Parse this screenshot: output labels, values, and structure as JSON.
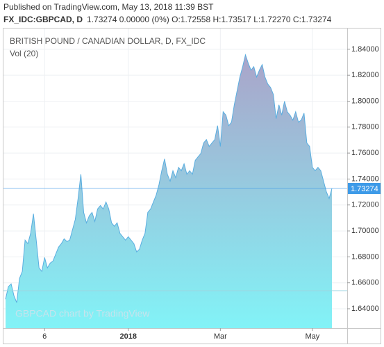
{
  "header": {
    "published": "Published on TradingView.com, May 13, 2018 11:39 BST",
    "symbol": "FX_IDC:GBPCAD, D",
    "quote": "1.73274 0.00000 (0%) O:1.72558 H:1.73517 L:1.72270 C:1.73274"
  },
  "chart_data": {
    "type": "area",
    "title": "BRITISH POUND / CANADIAN DOLLAR, D, FX_IDC",
    "subtitle": "Vol (20)",
    "watermark": "GBPCAD chart by TradingView",
    "categories": [
      null,
      null,
      null,
      null,
      null,
      null,
      null,
      null,
      null,
      null,
      null,
      null,
      null,
      null,
      "6",
      null,
      null,
      null,
      null,
      null,
      null,
      null,
      null,
      null,
      null,
      null,
      null,
      null,
      null,
      null,
      null,
      null,
      null,
      null,
      null,
      null,
      null,
      null,
      null,
      null,
      null,
      null,
      null,
      null,
      "2018",
      null,
      null,
      null,
      null,
      null,
      null,
      null,
      null,
      null,
      null,
      null,
      null,
      null,
      null,
      null,
      null,
      null,
      null,
      null,
      null,
      null,
      null,
      null,
      null,
      null,
      null,
      null,
      null,
      null,
      null,
      null,
      null,
      "Mar",
      null,
      null,
      null,
      null,
      null,
      null,
      null,
      null,
      null,
      null,
      null,
      null,
      null,
      null,
      null,
      null,
      null,
      null,
      null,
      null,
      null,
      null,
      null,
      null,
      null,
      null,
      null,
      null,
      null,
      null,
      null,
      null,
      "May",
      null,
      null,
      null,
      null,
      null,
      null,
      null
    ],
    "values": [
      1.6474,
      1.657,
      1.6592,
      1.6501,
      1.6447,
      1.6634,
      1.6688,
      1.6929,
      1.6902,
      1.6982,
      1.7132,
      1.6929,
      1.6715,
      1.6688,
      1.6795,
      1.6715,
      1.6752,
      1.6768,
      1.6822,
      1.6875,
      1.6902,
      1.6939,
      1.6918,
      1.6929,
      1.7009,
      1.7089,
      1.725,
      1.7437,
      1.7143,
      1.7062,
      1.7116,
      1.7143,
      1.7073,
      1.7169,
      1.7196,
      1.7169,
      1.7223,
      1.7169,
      1.7062,
      1.7036,
      1.7062,
      1.6982,
      1.6955,
      1.6929,
      1.6955,
      1.6929,
      1.6902,
      1.6838,
      1.6859,
      1.6929,
      1.6982,
      1.7143,
      1.7169,
      1.7223,
      1.7276,
      1.7357,
      1.7464,
      1.7555,
      1.7437,
      1.7383,
      1.7464,
      1.741,
      1.749,
      1.7464,
      1.7517,
      1.7437,
      1.7464,
      1.7437,
      1.7544,
      1.7571,
      1.7597,
      1.7678,
      1.7704,
      1.7651,
      1.7678,
      1.7704,
      1.7811,
      1.7651,
      1.7918,
      1.7892,
      1.7811,
      1.7838,
      1.7972,
      1.8079,
      1.8186,
      1.8266,
      1.8357,
      1.8293,
      1.8239,
      1.8266,
      1.8186,
      1.8239,
      1.8282,
      1.8186,
      1.8132,
      1.8106,
      1.8052,
      1.7865,
      1.7972,
      1.7892,
      1.7999,
      1.7918,
      1.7892,
      1.7854,
      1.7918,
      1.7838,
      1.7854,
      1.7908,
      1.7678,
      1.7651,
      1.749,
      1.7464,
      1.749,
      1.7464,
      1.7383,
      1.7303,
      1.725,
      1.73274
    ],
    "price_line": 1.73274,
    "color": "#5aaee0",
    "area_gradient": [
      "#aaa4c9",
      "#82f3f7"
    ],
    "price_line_color": "#3d9ae8",
    "ylim": [
      1.625,
      1.856
    ],
    "yticks": [
      {
        "value": 1.64,
        "label": "1.64000"
      },
      {
        "value": 1.66,
        "label": "1.66000"
      },
      {
        "value": 1.68,
        "label": "1.68000"
      },
      {
        "value": 1.7,
        "label": "1.70000"
      },
      {
        "value": 1.72,
        "label": "1.72000"
      },
      {
        "value": 1.74,
        "label": "1.74000"
      },
      {
        "value": 1.76,
        "label": "1.76000"
      },
      {
        "value": 1.78,
        "label": "1.78000"
      },
      {
        "value": 1.8,
        "label": "1.80000"
      },
      {
        "value": 1.82,
        "label": "1.82000"
      },
      {
        "value": 1.84,
        "label": "1.84000"
      }
    ],
    "grid": true
  }
}
